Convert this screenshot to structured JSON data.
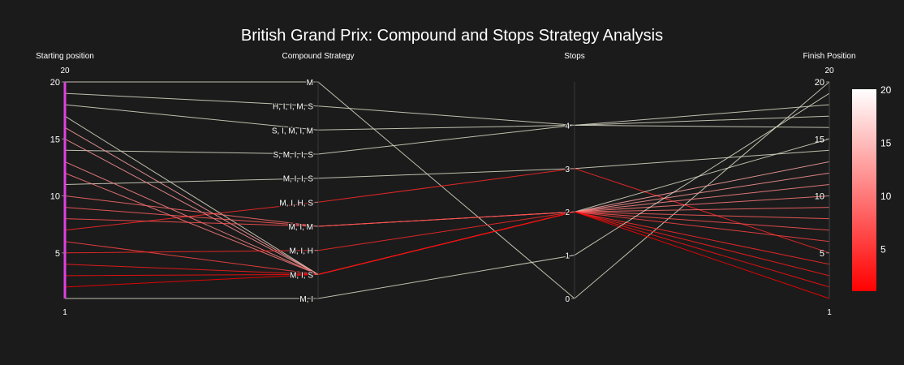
{
  "chart_data": {
    "type": "parallel_categories",
    "title": "British Grand Prix: Compound and Stops Strategy Analysis",
    "dimensions": [
      {
        "label": "Starting position",
        "kind": "numeric",
        "range": [
          1,
          20
        ],
        "tick_labels": [
          "5",
          "10",
          "15",
          "20"
        ],
        "top_label": "20",
        "bottom_label": "1",
        "highlight_color": "#e040e0"
      },
      {
        "label": "Compound Strategy",
        "kind": "categorical",
        "categories": [
          "M",
          "H, I, I, M, S",
          "S, I, M, I, M",
          "S, M, I, I, S",
          "M, I, I, S",
          "M, I, H, S",
          "M, I, M",
          "M, I, H",
          "M, I, S",
          "M, I"
        ]
      },
      {
        "label": "Stops",
        "kind": "categorical",
        "categories": [
          "4",
          "3",
          "2",
          "1",
          "0"
        ]
      },
      {
        "label": "Finish Position",
        "kind": "numeric",
        "range": [
          1,
          20
        ],
        "tick_labels": [
          "5",
          "10",
          "15",
          "20"
        ],
        "top_label": "20",
        "bottom_label": "1"
      }
    ],
    "records": [
      {
        "start": 20,
        "compound": "M",
        "stops": "0",
        "finish": 20,
        "color": 20
      },
      {
        "start": 19,
        "compound": "H, I, I, M, S",
        "stops": "4",
        "finish": 16,
        "color": 19
      },
      {
        "start": 18,
        "compound": "S, I, M, I, M",
        "stops": "4",
        "finish": 17,
        "color": 18
      },
      {
        "start": 14,
        "compound": "S, M, I, I, S",
        "stops": "4",
        "finish": 18,
        "color": 18
      },
      {
        "start": 11,
        "compound": "M, I, I, S",
        "stops": "3",
        "finish": 14,
        "color": 15
      },
      {
        "start": 7,
        "compound": "M, I, H, S",
        "stops": "3",
        "finish": 5,
        "color": 4
      },
      {
        "start": 17,
        "compound": "M, I, S",
        "stops": "2",
        "finish": 15,
        "color": 15
      },
      {
        "start": 16,
        "compound": "M, I, S",
        "stops": "2",
        "finish": 13,
        "color": 13
      },
      {
        "start": 15,
        "compound": "M, I, S",
        "stops": "2",
        "finish": 12,
        "color": 12
      },
      {
        "start": 13,
        "compound": "M, I, S",
        "stops": "2",
        "finish": 11,
        "color": 11
      },
      {
        "start": 12,
        "compound": "M, I, S",
        "stops": "2",
        "finish": 10,
        "color": 10
      },
      {
        "start": 10,
        "compound": "M, I, M",
        "stops": "2",
        "finish": 9,
        "color": 9
      },
      {
        "start": 9,
        "compound": "M, I, M",
        "stops": "2",
        "finish": 8,
        "color": 8
      },
      {
        "start": 8,
        "compound": "M, I, M",
        "stops": "2",
        "finish": 7,
        "color": 7
      },
      {
        "start": 6,
        "compound": "M, I, S",
        "stops": "2",
        "finish": 6,
        "color": 6
      },
      {
        "start": 5,
        "compound": "M, I, H",
        "stops": "2",
        "finish": 4,
        "color": 4
      },
      {
        "start": 4,
        "compound": "M, I, S",
        "stops": "2",
        "finish": 3,
        "color": 3
      },
      {
        "start": 3,
        "compound": "M, I, S",
        "stops": "2",
        "finish": 2,
        "color": 2
      },
      {
        "start": 2,
        "compound": "M, I, S",
        "stops": "2",
        "finish": 1,
        "color": 1
      },
      {
        "start": 1,
        "compound": "M, I",
        "stops": "1",
        "finish": 19,
        "color": 19
      }
    ],
    "colorbar": {
      "range": [
        1,
        20
      ],
      "tick_labels": [
        "5",
        "10",
        "15",
        "20"
      ],
      "colors": [
        "#ff0000",
        "#ffffff"
      ]
    },
    "line_color_mid": "#e8e8d8"
  }
}
